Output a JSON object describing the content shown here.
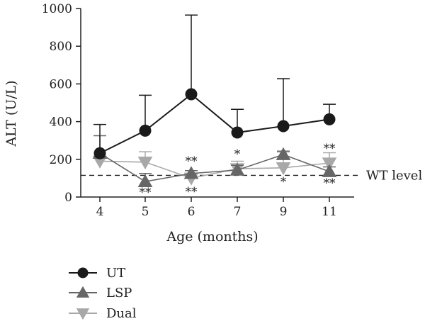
{
  "chart_data": {
    "type": "line",
    "xlabel": "Age (months)",
    "ylabel": "ALT (U/L)",
    "categories": [
      "4",
      "5",
      "6",
      "7",
      "9",
      "11"
    ],
    "ylim": [
      0,
      1000
    ],
    "yticks": [
      0,
      200,
      400,
      600,
      800,
      1000
    ],
    "grid": false,
    "legend_placement": "bottom-left",
    "reference_line": {
      "value": 115,
      "label": "WT level",
      "style": "dashed"
    },
    "series": [
      {
        "name": "UT",
        "color": "#1a1a1a",
        "marker": "circle",
        "values": [
          232,
          352,
          545,
          342,
          376,
          412
        ],
        "error_upper": [
          385,
          540,
          965,
          465,
          628,
          492
        ]
      },
      {
        "name": "LSP",
        "color": "#666666",
        "marker": "triangle-up",
        "values": [
          232,
          82,
          125,
          143,
          225,
          135
        ],
        "error_upper": [
          325,
          125,
          140,
          168,
          240,
          160
        ]
      },
      {
        "name": "Dual",
        "color": "#a8a8a8",
        "marker": "triangle-down",
        "values": [
          190,
          185,
          100,
          150,
          155,
          180
        ],
        "error_upper": [
          215,
          240,
          118,
          190,
          245,
          235
        ]
      }
    ],
    "annotations": [
      {
        "category": "5",
        "text": "**",
        "position": "below"
      },
      {
        "category": "6",
        "text": "**",
        "position": "above"
      },
      {
        "category": "6",
        "text": "**",
        "position": "below"
      },
      {
        "category": "7",
        "text": "*",
        "position": "above"
      },
      {
        "category": "9",
        "text": "*",
        "position": "below"
      },
      {
        "category": "11",
        "text": "**",
        "position": "above"
      },
      {
        "category": "11",
        "text": "**",
        "position": "below"
      }
    ]
  }
}
